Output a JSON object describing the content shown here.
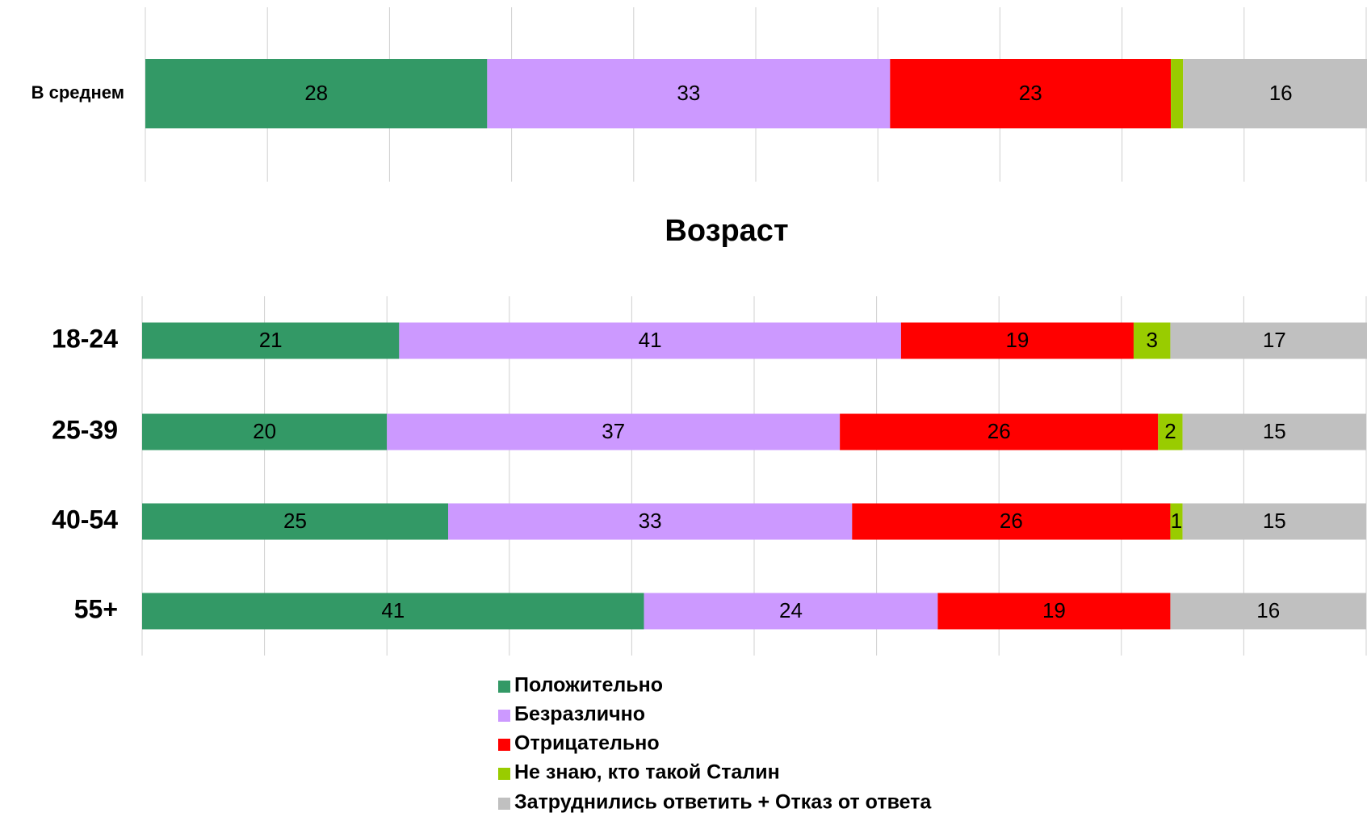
{
  "chart_data": [
    {
      "type": "stacked-bar-horizontal",
      "categories": [
        "В среднем"
      ],
      "series": [
        {
          "color": "#339966",
          "values": [
            28
          ]
        },
        {
          "color": "#cc99ff",
          "values": [
            33
          ]
        },
        {
          "color": "#ff0000",
          "values": [
            23
          ]
        },
        {
          "color": "#99cc00",
          "values": [
            1
          ],
          "value_labels": [
            null
          ]
        },
        {
          "color": "#c0c0c0",
          "values": [
            16
          ]
        }
      ],
      "xlim": [
        0,
        100
      ],
      "xticks": [
        0,
        10,
        20,
        30,
        40,
        50,
        60,
        70,
        80,
        90,
        100
      ],
      "grid": true
    },
    {
      "type": "stacked-bar-horizontal",
      "title": "Возраст",
      "categories": [
        "18-24",
        "25-39",
        "40-54",
        "55+"
      ],
      "series": [
        {
          "name": "Положительно",
          "color": "#339966",
          "values": [
            21,
            20,
            25,
            41
          ]
        },
        {
          "name": "Безразлично",
          "color": "#cc99ff",
          "values": [
            41,
            37,
            33,
            24
          ]
        },
        {
          "name": "Отрицательно",
          "color": "#ff0000",
          "values": [
            19,
            26,
            26,
            19
          ]
        },
        {
          "name": "Не знаю, кто такой Сталин",
          "color": "#99cc00",
          "values": [
            3,
            2,
            1,
            0
          ]
        },
        {
          "name": "Затруднились ответить + Отказ от ответа",
          "color": "#c0c0c0",
          "values": [
            17,
            15,
            15,
            16
          ]
        }
      ],
      "xlim": [
        0,
        100
      ],
      "xticks": [
        0,
        10,
        20,
        30,
        40,
        50,
        60,
        70,
        80,
        90,
        100
      ],
      "grid": true
    }
  ]
}
